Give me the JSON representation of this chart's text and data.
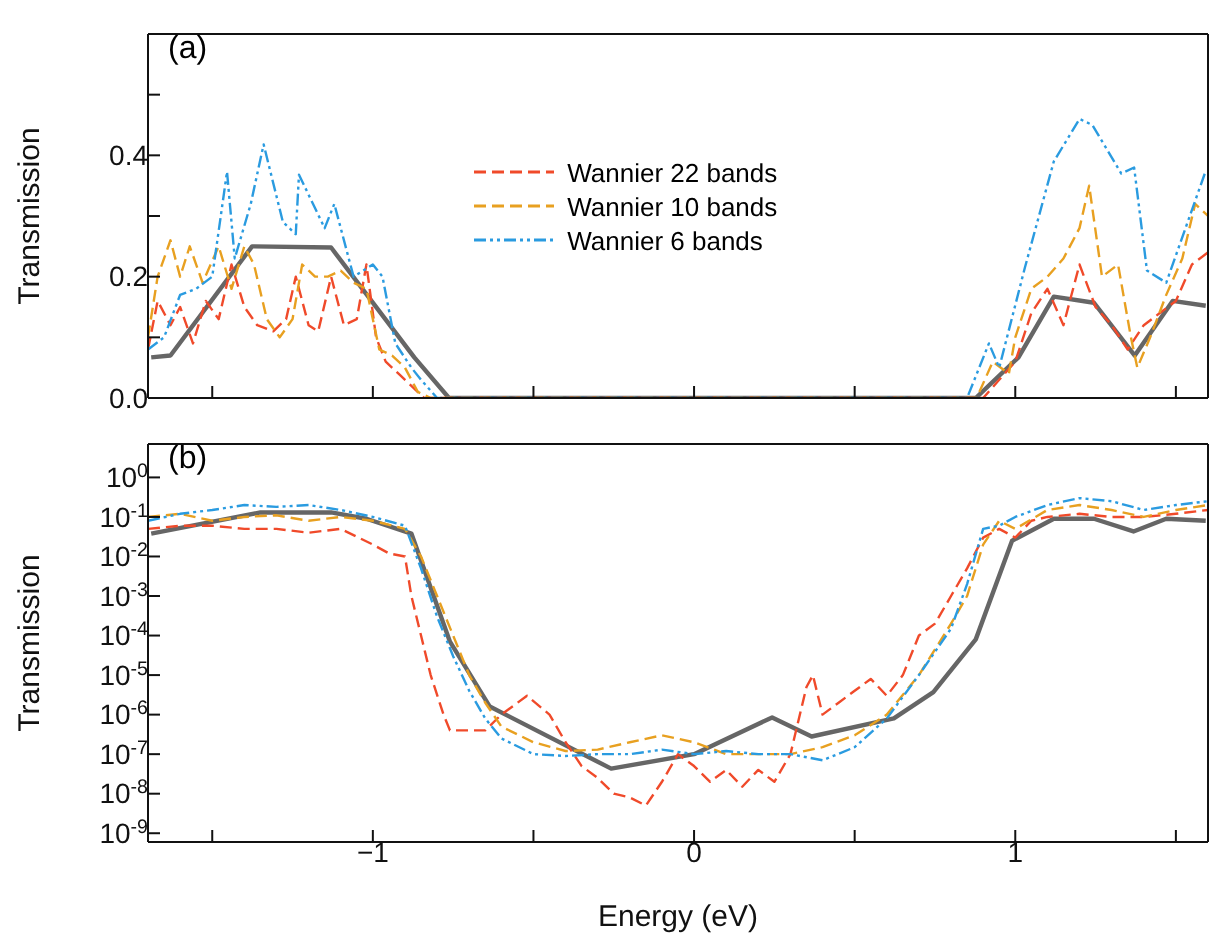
{
  "chart_data": [
    {
      "type": "line",
      "ylabel": "Transmission",
      "annotations": [
        "(a)"
      ],
      "legend": "center",
      "tick_labels": "y",
      "xlim": [
        -1.7,
        1.6
      ],
      "xticks": [
        {
          "value": -1.5,
          "label": null
        },
        {
          "value": -1,
          "label": null
        },
        {
          "value": -0.5,
          "label": null
        },
        {
          "value": 0,
          "label": null
        },
        {
          "value": 0.5,
          "label": null
        },
        {
          "value": 1,
          "label": null
        },
        {
          "value": 1.5,
          "label": null
        }
      ],
      "ylim": [
        0,
        0.6
      ],
      "yticks": [
        {
          "value": 0,
          "label": "0.0"
        },
        {
          "value": 0.1,
          "label": null
        },
        {
          "value": 0.2,
          "label": "0.2"
        },
        {
          "value": 0.3,
          "label": null
        },
        {
          "value": 0.4,
          "label": "0.4"
        },
        {
          "value": 0.5,
          "label": null
        }
      ],
      "series": [
        {
          "color": "#666666",
          "line_style": "solid",
          "x": [
            -1.69,
            -1.63,
            -1.376,
            -1.13,
            -0.871,
            -0.763,
            0.877,
            1.01,
            1.12,
            1.245,
            1.372,
            1.49,
            1.593
          ],
          "values": [
            0.067,
            0.07,
            0.25,
            0.248,
            0.067,
            0,
            0,
            0.067,
            0.167,
            0.157,
            0.07,
            0.16,
            0.152
          ]
        },
        {
          "name": "Wannier 22 bands",
          "color": "#f04a2a",
          "line_style": "dashed",
          "x": [
            -1.7,
            -1.67,
            -1.63,
            -1.6,
            -1.56,
            -1.52,
            -1.48,
            -1.44,
            -1.4,
            -1.36,
            -1.31,
            -1.27,
            -1.24,
            -1.2,
            -1.17,
            -1.13,
            -1.09,
            -1.05,
            -1.02,
            -0.99,
            -0.96,
            -0.92,
            -0.88,
            -0.84,
            0,
            0.9,
            0.95,
            1.0,
            1.05,
            1.1,
            1.15,
            1.2,
            1.25,
            1.3,
            1.35,
            1.4,
            1.45,
            1.5,
            1.55,
            1.6
          ],
          "values": [
            0.08,
            0.16,
            0.12,
            0.15,
            0.09,
            0.16,
            0.13,
            0.22,
            0.15,
            0.12,
            0.11,
            0.13,
            0.2,
            0.12,
            0.11,
            0.2,
            0.12,
            0.13,
            0.22,
            0.1,
            0.06,
            0.04,
            0.02,
            0,
            0,
            0,
            0.03,
            0.06,
            0.14,
            0.18,
            0.12,
            0.22,
            0.15,
            0.12,
            0.08,
            0.12,
            0.14,
            0.16,
            0.22,
            0.24
          ]
        },
        {
          "name": "Wannier 10 bands",
          "color": "#e8a020",
          "line_style": "dashed",
          "x": [
            -1.7,
            -1.67,
            -1.63,
            -1.6,
            -1.57,
            -1.53,
            -1.48,
            -1.44,
            -1.4,
            -1.37,
            -1.33,
            -1.29,
            -1.25,
            -1.22,
            -1.18,
            -1.14,
            -1.1,
            -1.06,
            -1.02,
            -0.98,
            -0.94,
            -0.9,
            -0.86,
            -0.82,
            0,
            0.88,
            0.93,
            0.98,
            1.0,
            1.05,
            1.1,
            1.15,
            1.2,
            1.23,
            1.27,
            1.32,
            1.36,
            1.38,
            1.42,
            1.47,
            1.52,
            1.56,
            1.6
          ],
          "values": [
            0.1,
            0.2,
            0.26,
            0.2,
            0.25,
            0.19,
            0.25,
            0.18,
            0.25,
            0.22,
            0.13,
            0.1,
            0.13,
            0.22,
            0.2,
            0.2,
            0.21,
            0.19,
            0.18,
            0.08,
            0.07,
            0.05,
            0.01,
            0,
            0,
            0,
            0.06,
            0.04,
            0.1,
            0.18,
            0.2,
            0.23,
            0.28,
            0.35,
            0.2,
            0.22,
            0.1,
            0.05,
            0.1,
            0.17,
            0.23,
            0.32,
            0.3
          ]
        },
        {
          "name": "Wannier 6 bands",
          "color": "#2a9be0",
          "line_style": "dotted",
          "x": [
            -1.7,
            -1.65,
            -1.6,
            -1.55,
            -1.5,
            -1.454,
            -1.43,
            -1.38,
            -1.34,
            -1.28,
            -1.24,
            -1.23,
            -1.15,
            -1.12,
            -1.06,
            -1.0,
            -0.97,
            -0.93,
            -0.88,
            -0.85,
            -0.8,
            0,
            0.85,
            0.918,
            0.95,
            1.03,
            1.12,
            1.2,
            1.24,
            1.33,
            1.37,
            1.41,
            1.47,
            1.53,
            1.59
          ],
          "values": [
            0.08,
            0.1,
            0.17,
            0.18,
            0.2,
            0.373,
            0.23,
            0.32,
            0.418,
            0.29,
            0.27,
            0.368,
            0.28,
            0.32,
            0.2,
            0.22,
            0.2,
            0.09,
            0.05,
            0.03,
            0,
            0,
            0,
            0.09,
            0.05,
            0.215,
            0.39,
            0.46,
            0.45,
            0.37,
            0.38,
            0.21,
            0.19,
            0.28,
            0.37
          ]
        }
      ]
    },
    {
      "type": "line",
      "log": "y",
      "ylabel": "Transmission",
      "xlabel": "Energy (eV)",
      "annotations": [
        "(b)"
      ],
      "xlim": [
        -1.7,
        1.6
      ],
      "xticks": [
        {
          "value": -1.5,
          "label": null
        },
        {
          "value": -1,
          "label": "−1"
        },
        {
          "value": -0.5,
          "label": null
        },
        {
          "value": 0,
          "label": "0"
        },
        {
          "value": 0.5,
          "label": null
        },
        {
          "value": 1,
          "label": "1"
        },
        {
          "value": 1.5,
          "label": null
        }
      ],
      "ylim": [
        6e-10,
        7
      ],
      "yticks": [
        {
          "value": 1e-09,
          "label": "10$^{-9}$"
        },
        {
          "value": 1e-08,
          "label": "10$^{-8}$"
        },
        {
          "value": 1e-07,
          "label": "10$^{-7}$"
        },
        {
          "value": 1e-06,
          "label": "10$^{-6}$"
        },
        {
          "value": 1e-05,
          "label": "10$^{-5}$"
        },
        {
          "value": 0.0001,
          "label": "10$^{-4}$"
        },
        {
          "value": 0.001,
          "label": "10$^{-3}$"
        },
        {
          "value": 0.01,
          "label": "10$^{-2}$"
        },
        {
          "value": 0.1,
          "label": "10$^{-1}$"
        },
        {
          "value": 1,
          "label": "10$^{0}$"
        }
      ],
      "series": [
        {
          "color": "#666666",
          "line_style": "solid",
          "x": [
            -1.69,
            -1.35,
            -1.13,
            -1.02,
            -0.88,
            -0.76,
            -0.636,
            -0.258,
            0,
            0.243,
            0.366,
            0.622,
            0.745,
            0.877,
            0.99,
            1.12,
            1.245,
            1.368,
            1.47,
            1.593
          ],
          "values": [
            0.038,
            0.13,
            0.13,
            0.09,
            0.038,
            7e-05,
            1.6e-06,
            4.3e-08,
            1e-07,
            8.5e-07,
            2.8e-07,
            8e-07,
            3.7e-06,
            8e-05,
            0.025,
            0.09,
            0.09,
            0.043,
            0.09,
            0.08
          ]
        },
        {
          "color": "#f04a2a",
          "line_style": "dashed",
          "x": [
            -1.7,
            -1.6,
            -1.5,
            -1.4,
            -1.3,
            -1.2,
            -1.1,
            -1.0,
            -0.95,
            -0.9,
            -0.88,
            -0.85,
            -0.82,
            -0.78,
            -0.76,
            -0.65,
            -0.6,
            -0.52,
            -0.45,
            -0.4,
            -0.35,
            -0.3,
            -0.25,
            -0.2,
            -0.15,
            -0.1,
            -0.05,
            0,
            0.05,
            0.1,
            0.15,
            0.2,
            0.25,
            0.3,
            0.35,
            0.37,
            0.4,
            0.45,
            0.5,
            0.55,
            0.6,
            0.65,
            0.7,
            0.75,
            0.8,
            0.85,
            0.9,
            0.95,
            1.0,
            1.05,
            1.1,
            1.2,
            1.3,
            1.4,
            1.5,
            1.6
          ],
          "values": [
            0.05,
            0.06,
            0.06,
            0.05,
            0.05,
            0.04,
            0.05,
            0.02,
            0.012,
            0.01,
            0.001,
            0.0001,
            1e-05,
            1e-06,
            4e-07,
            4e-07,
            1e-06,
            3e-06,
            1e-06,
            2e-07,
            5e-08,
            2.5e-08,
            1e-08,
            8e-09,
            5e-09,
            2e-08,
            1e-07,
            5e-08,
            2e-08,
            4e-08,
            1.5e-08,
            4e-08,
            2e-08,
            1e-07,
            5e-06,
            1e-05,
            1e-06,
            2e-06,
            4e-06,
            8e-06,
            3e-06,
            1e-05,
            0.0001,
            0.0002,
            0.001,
            0.005,
            0.03,
            0.05,
            0.03,
            0.08,
            0.1,
            0.12,
            0.1,
            0.1,
            0.12,
            0.15
          ]
        },
        {
          "color": "#e8a020",
          "line_style": "dashed",
          "x": [
            -1.7,
            -1.6,
            -1.5,
            -1.4,
            -1.3,
            -1.2,
            -1.1,
            -1.0,
            -0.9,
            -0.85,
            -0.8,
            -0.75,
            -0.7,
            -0.65,
            -0.6,
            -0.5,
            -0.4,
            -0.3,
            -0.2,
            -0.1,
            0,
            0.1,
            0.2,
            0.3,
            0.4,
            0.5,
            0.6,
            0.7,
            0.8,
            0.85,
            0.9,
            0.95,
            1.0,
            1.1,
            1.2,
            1.3,
            1.4,
            1.5,
            1.6
          ],
          "values": [
            0.1,
            0.12,
            0.08,
            0.1,
            0.11,
            0.08,
            0.1,
            0.08,
            0.05,
            0.01,
            0.001,
            0.0001,
            1e-05,
            2e-06,
            5e-07,
            2e-07,
            1.2e-07,
            1.3e-07,
            2e-07,
            3e-07,
            2e-07,
            1e-07,
            1e-07,
            1e-07,
            1.5e-07,
            3e-07,
            1e-06,
            1e-05,
            0.0002,
            0.001,
            0.02,
            0.08,
            0.05,
            0.15,
            0.2,
            0.15,
            0.1,
            0.15,
            0.2
          ]
        },
        {
          "color": "#2a9be0",
          "line_style": "dotted",
          "x": [
            -1.7,
            -1.6,
            -1.5,
            -1.4,
            -1.3,
            -1.2,
            -1.1,
            -1.0,
            -0.9,
            -0.85,
            -0.8,
            -0.75,
            -0.7,
            -0.65,
            -0.6,
            -0.5,
            -0.4,
            -0.3,
            -0.2,
            -0.1,
            0,
            0.1,
            0.2,
            0.3,
            0.4,
            0.5,
            0.6,
            0.7,
            0.8,
            0.85,
            0.9,
            0.95,
            1.0,
            1.1,
            1.2,
            1.3,
            1.4,
            1.5,
            1.6
          ],
          "values": [
            0.08,
            0.12,
            0.15,
            0.2,
            0.18,
            0.2,
            0.15,
            0.1,
            0.06,
            0.005,
            0.0003,
            3e-05,
            4e-06,
            8e-07,
            2.5e-07,
            1e-07,
            9e-08,
            1e-07,
            1e-07,
            1.3e-07,
            1e-07,
            1.2e-07,
            1e-07,
            1e-07,
            7e-08,
            1.5e-07,
            8e-07,
            1e-05,
            0.00015,
            0.002,
            0.05,
            0.06,
            0.1,
            0.2,
            0.3,
            0.25,
            0.15,
            0.2,
            0.25
          ]
        }
      ]
    }
  ]
}
